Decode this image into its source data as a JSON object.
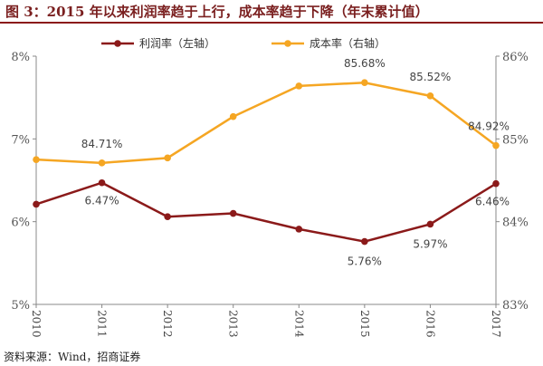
{
  "header": {
    "title": "图 3：2015 年以来利润率趋于上行，成本率趋于下降（年末累计值）"
  },
  "footer": {
    "source": "资料来源：Wind，招商证券"
  },
  "colors": {
    "profit": "#8b1a1a",
    "cost": "#f5a623",
    "rule": "#8b1a1a"
  },
  "chart_data": {
    "type": "line",
    "categories": [
      "2010",
      "2011",
      "2012",
      "2013",
      "2014",
      "2015",
      "2016",
      "2017"
    ],
    "y_left": {
      "ylim": [
        5,
        8
      ],
      "ticks": [
        "5%",
        "6%",
        "7%",
        "8%"
      ],
      "tick_values": [
        5,
        6,
        7,
        8
      ]
    },
    "y_right": {
      "ylim": [
        83,
        86
      ],
      "ticks": [
        "83%",
        "84%",
        "85%",
        "86%"
      ],
      "tick_values": [
        83,
        84,
        85,
        86
      ]
    },
    "grid": false,
    "legend_position": "top",
    "series": [
      {
        "name": "利润率（左轴）",
        "axis": "left",
        "color": "#8b1a1a",
        "values": [
          6.21,
          6.47,
          6.06,
          6.1,
          5.91,
          5.76,
          5.97,
          6.46
        ]
      },
      {
        "name": "成本率（右轴）",
        "axis": "right",
        "color": "#f5a623",
        "values": [
          84.75,
          84.71,
          84.77,
          85.27,
          85.64,
          85.68,
          85.52,
          84.92
        ]
      }
    ],
    "data_labels": [
      {
        "series": 0,
        "index": 1,
        "text": "6.47%"
      },
      {
        "series": 0,
        "index": 5,
        "text": "5.76%"
      },
      {
        "series": 0,
        "index": 6,
        "text": "5.97%"
      },
      {
        "series": 0,
        "index": 7,
        "text": "6.46%"
      },
      {
        "series": 1,
        "index": 1,
        "text": "84.71%"
      },
      {
        "series": 1,
        "index": 5,
        "text": "85.68%"
      },
      {
        "series": 1,
        "index": 6,
        "text": "85.52%"
      },
      {
        "series": 1,
        "index": 7,
        "text": "84.92%"
      }
    ]
  }
}
